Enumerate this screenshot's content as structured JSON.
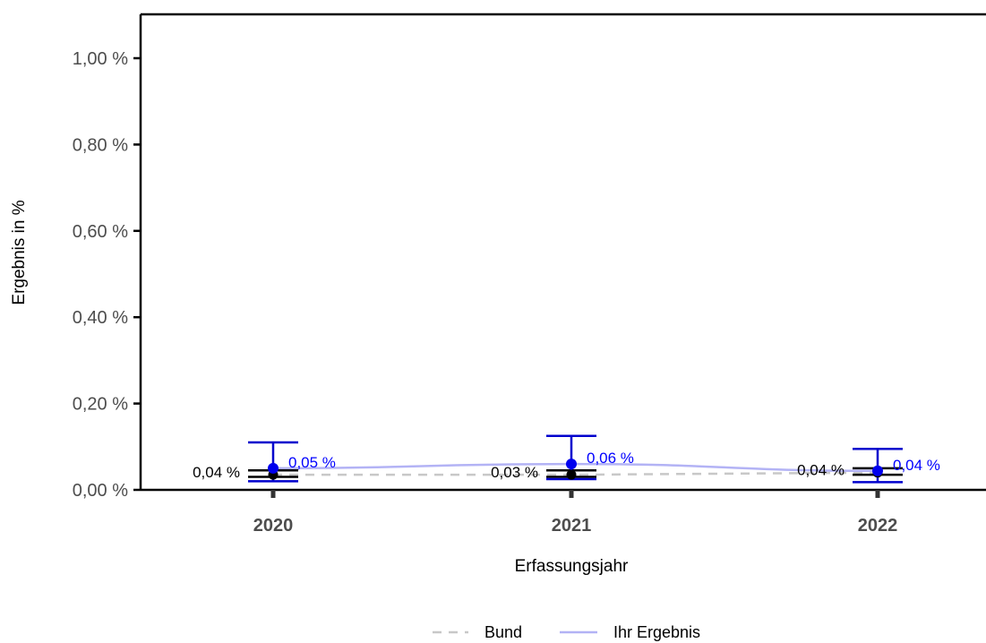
{
  "chart_data": {
    "type": "line",
    "title": "",
    "xlabel": "Erfassungsjahr",
    "ylabel": "Ergebnis in %",
    "categories": [
      "2020",
      "2021",
      "2022"
    ],
    "ylim": [
      0,
      1.0
    ],
    "y_ticks": [
      0,
      0.2,
      0.4,
      0.6,
      0.8,
      1.0
    ],
    "y_tick_labels": [
      "0,00 %",
      "0,20 %",
      "0,40 %",
      "0,60 %",
      "0,80 %",
      "1,00 %"
    ],
    "grid": false,
    "legend_position": "bottom",
    "series": [
      {
        "name": "Bund",
        "style": "dashed",
        "color": "#c8c8c8",
        "values": [
          0.035,
          0.035,
          0.04
        ],
        "ci_low": [
          0.03,
          0.03,
          0.035
        ],
        "ci_high": [
          0.045,
          0.045,
          0.05
        ],
        "ci_color": "#000000",
        "labels": [
          "0,04 %",
          "0,03 %",
          "0,04 %"
        ],
        "label_color": "#000000"
      },
      {
        "name": "Ihr Ergebnis",
        "style": "solid",
        "color": "#b3b3f5",
        "values": [
          0.05,
          0.06,
          0.044
        ],
        "ci_low": [
          0.02,
          0.025,
          0.018
        ],
        "ci_high": [
          0.11,
          0.125,
          0.095
        ],
        "ci_color": "#0000cd",
        "labels": [
          "0,05 %",
          "0,06 %",
          "0,04 %"
        ],
        "label_color": "#0000ff"
      }
    ]
  }
}
